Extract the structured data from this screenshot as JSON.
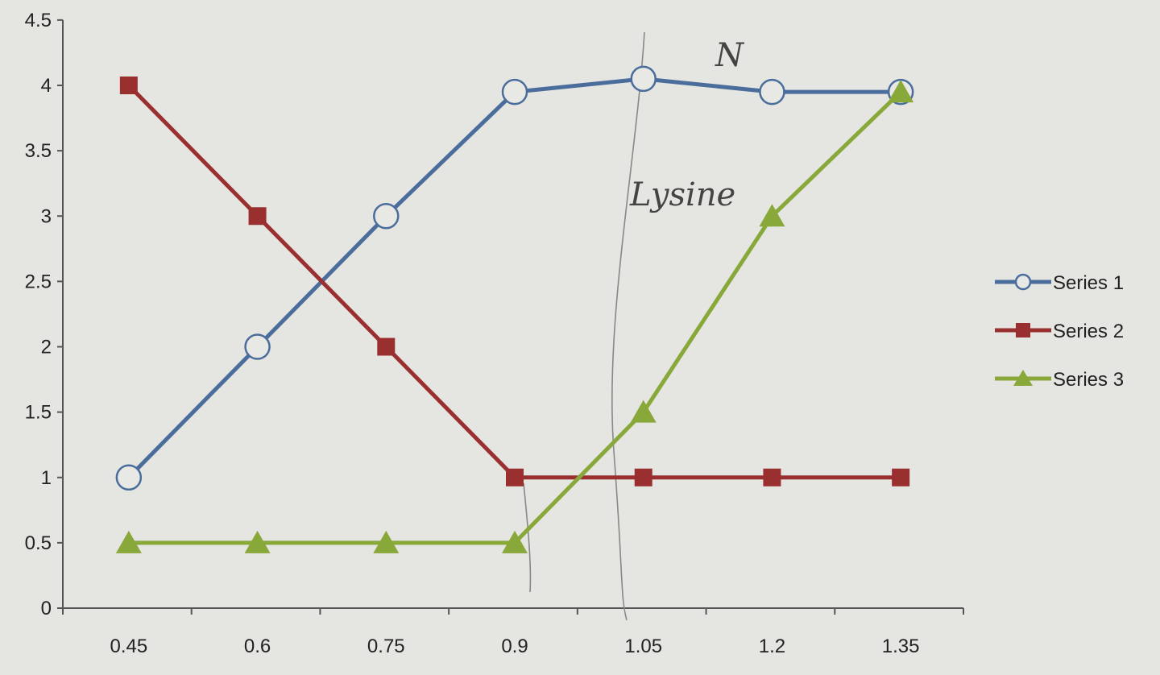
{
  "chart_data": {
    "type": "line",
    "title": "",
    "xlabel": "",
    "ylabel": "",
    "categories": [
      "0.45",
      "0.6",
      "0.75",
      "0.9",
      "1.05",
      "1.2",
      "1.35"
    ],
    "ylim": [
      0,
      4.5
    ],
    "yticks": [
      "0",
      "0.5",
      "1",
      "1.5",
      "2",
      "2.5",
      "3",
      "3.5",
      "4",
      "4.5"
    ],
    "grid": false,
    "legend_position": "right",
    "series": [
      {
        "name": "Series 1",
        "color": "#4a6d9c",
        "marker": "open-circle",
        "values": [
          1,
          2,
          3,
          3.95,
          4.05,
          3.95,
          3.95
        ]
      },
      {
        "name": "Series 2",
        "color": "#9a2f30",
        "marker": "square",
        "values": [
          4,
          3,
          2,
          1,
          1,
          1,
          1
        ]
      },
      {
        "name": "Series 3",
        "color": "#88a83a",
        "marker": "triangle",
        "values": [
          0.5,
          0.5,
          0.5,
          0.5,
          1.5,
          3,
          3.95
        ]
      }
    ],
    "annotations": [
      "N",
      "Lysine"
    ]
  }
}
